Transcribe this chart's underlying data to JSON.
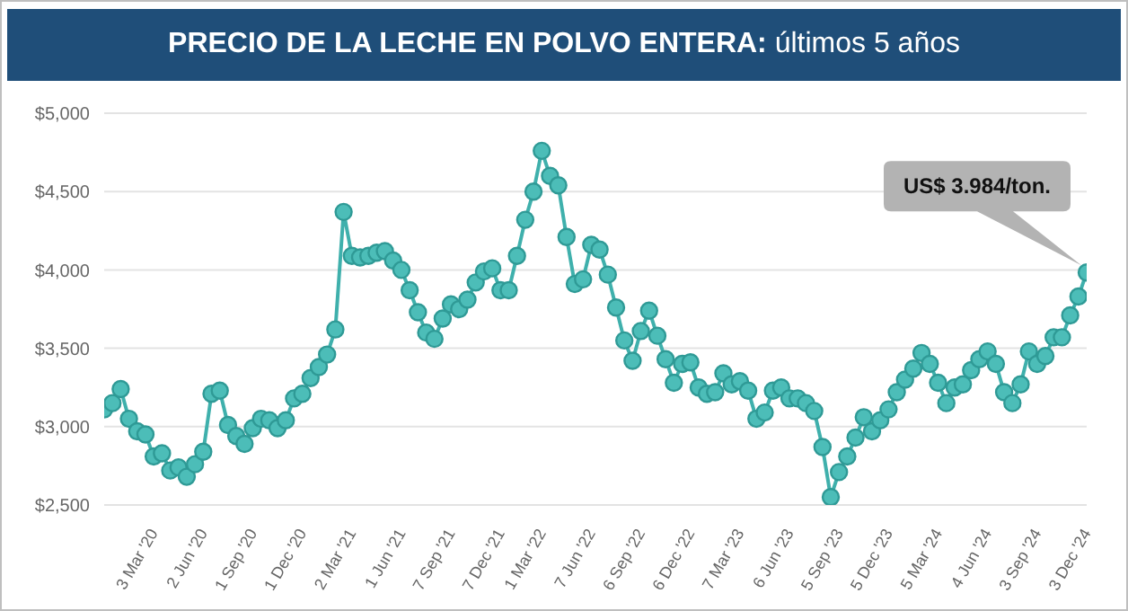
{
  "chart_data": {
    "type": "line",
    "title": "PRECIO DE LA LECHE EN POLVO ENTERA: últimos 5 años",
    "categories": [
      null,
      null,
      null,
      null,
      null,
      null,
      "3 Mar '20",
      null,
      null,
      null,
      null,
      null,
      "2 Jun '20",
      null,
      null,
      null,
      null,
      null,
      "1 Sep '20",
      null,
      null,
      null,
      null,
      null,
      "1 Dec '20",
      null,
      null,
      null,
      null,
      null,
      "2 Mar '21",
      null,
      null,
      null,
      null,
      null,
      "1 Jun '21",
      null,
      null,
      null,
      null,
      null,
      "7 Sep '21",
      null,
      null,
      null,
      null,
      null,
      "7 Dec '21",
      null,
      null,
      null,
      null,
      "1 Mar '22",
      null,
      null,
      null,
      null,
      null,
      "7 Jun '22",
      null,
      null,
      null,
      null,
      null,
      "6 Sep '22",
      null,
      null,
      null,
      null,
      null,
      "6 Dec '22",
      null,
      null,
      null,
      null,
      null,
      "7 Mar '23",
      null,
      null,
      null,
      null,
      null,
      "6 Jun '23",
      null,
      null,
      null,
      null,
      null,
      "5 Sep '23",
      null,
      null,
      null,
      null,
      null,
      "5 Dec '23",
      null,
      null,
      null,
      null,
      null,
      "5 Mar '24",
      null,
      null,
      null,
      null,
      null,
      "4 Jun '24",
      null,
      null,
      null,
      null,
      null,
      "3 Sep '24",
      null,
      null,
      null,
      null,
      null,
      "3 Dec '24"
    ],
    "series": [
      {
        "color": "#3fb0ac",
        "values": [
          3110,
          3150,
          3240,
          3050,
          2970,
          2950,
          2810,
          2830,
          2720,
          2740,
          2680,
          2760,
          2840,
          3210,
          3230,
          3010,
          2940,
          2890,
          2990,
          3050,
          3040,
          2990,
          3040,
          3180,
          3210,
          3310,
          3380,
          3460,
          3620,
          4370,
          4090,
          4080,
          4090,
          4110,
          4120,
          4060,
          4000,
          3870,
          3730,
          3600,
          3560,
          3690,
          3780,
          3750,
          3810,
          3920,
          3990,
          4010,
          3870,
          3870,
          4090,
          4320,
          4500,
          4760,
          4600,
          4540,
          4210,
          3910,
          3940,
          4160,
          4130,
          3970,
          3760,
          3550,
          3420,
          3610,
          3740,
          3580,
          3430,
          3280,
          3400,
          3410,
          3250,
          3210,
          3220,
          3340,
          3270,
          3290,
          3230,
          3050,
          3090,
          3230,
          3250,
          3180,
          3180,
          3150,
          3100,
          2870,
          2550,
          2710,
          2810,
          2930,
          3060,
          2970,
          3040,
          3110,
          3220,
          3300,
          3370,
          3470,
          3400,
          3280,
          3150,
          3250,
          3270,
          3360,
          3430,
          3480,
          3400,
          3220,
          3150,
          3270,
          3480,
          3400,
          3450,
          3570,
          3570,
          3710,
          3830,
          3984
        ]
      }
    ],
    "ylim": [
      2500,
      5000
    ],
    "yticks": [
      {
        "value": 2500,
        "label": "$2,500"
      },
      {
        "value": 3000,
        "label": "$3,000"
      },
      {
        "value": 3500,
        "label": "$3,500"
      },
      {
        "value": 4000,
        "label": "$4,000"
      },
      {
        "value": 4500,
        "label": "$4,500"
      },
      {
        "value": 5000,
        "label": "$5,000"
      }
    ],
    "grid": "y",
    "marker": "circle",
    "line_style": "solid",
    "annotations": [
      "US$ 3.984/ton."
    ]
  }
}
